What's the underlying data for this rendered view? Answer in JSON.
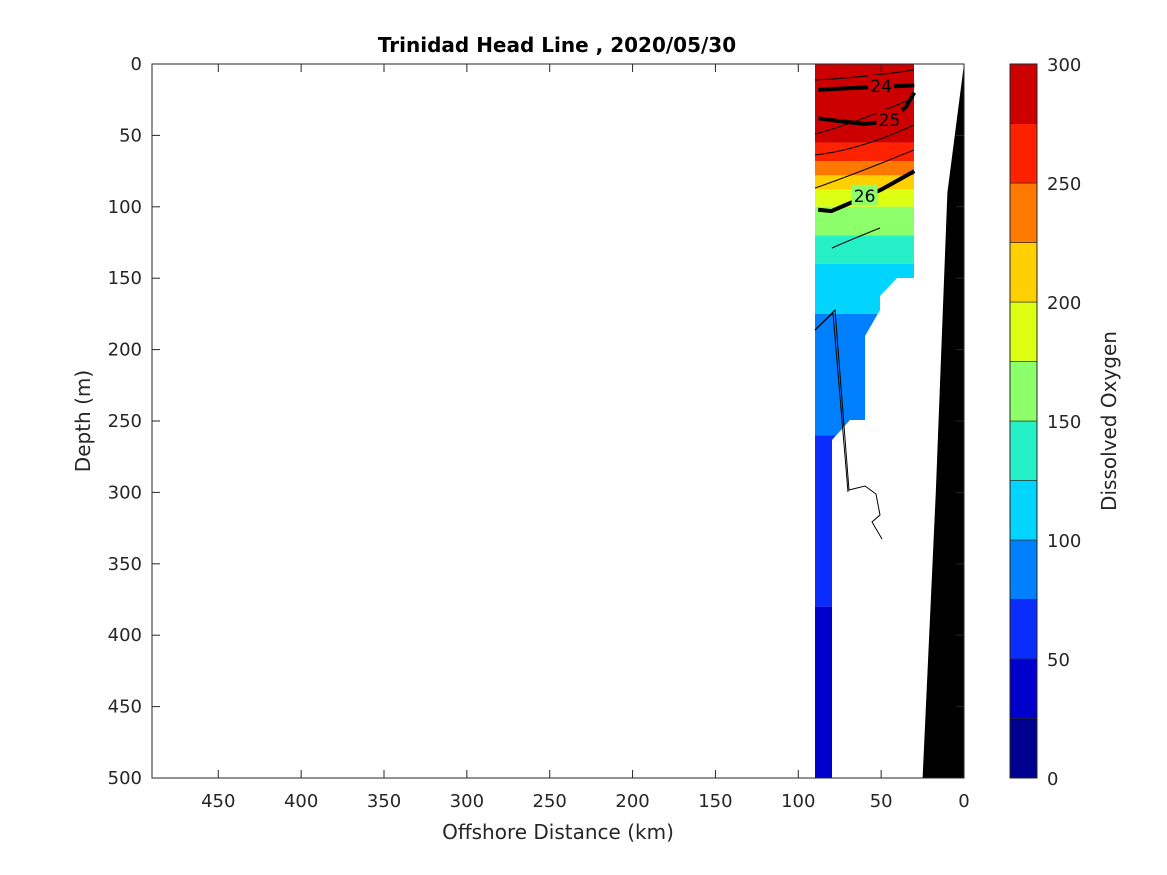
{
  "chart_data": {
    "type": "contour",
    "title": "Trinidad Head Line , 2020/05/30",
    "xlabel": "Offshore Distance (km)",
    "ylabel": "Depth (m)",
    "xlim": [
      490,
      0
    ],
    "ylim": [
      0,
      500
    ],
    "x_reversed": true,
    "y_reversed": true,
    "xticks": [
      450,
      400,
      350,
      300,
      250,
      200,
      150,
      100,
      50,
      0
    ],
    "yticks": [
      0,
      50,
      100,
      150,
      200,
      250,
      300,
      350,
      400,
      450,
      500
    ],
    "colorbar": {
      "label": "Dissolved Oxygen",
      "range": [
        0,
        300
      ],
      "ticks": [
        0,
        50,
        100,
        150,
        200,
        250,
        300
      ],
      "levels": [
        0,
        25,
        50,
        75,
        100,
        125,
        150,
        175,
        200,
        225,
        250,
        275,
        300
      ],
      "colors": [
        "#00008f",
        "#0000cc",
        "#0a2cff",
        "#0080ff",
        "#00d4ff",
        "#26f0c8",
        "#8cff6a",
        "#dcff14",
        "#ffd000",
        "#ff7800",
        "#ff2200",
        "#cc0000"
      ]
    },
    "oxygen_bands": [
      {
        "top": 0,
        "bottom": 55,
        "value": 287
      },
      {
        "top": 55,
        "bottom": 68,
        "value": 262
      },
      {
        "top": 68,
        "bottom": 78,
        "value": 238
      },
      {
        "top": 78,
        "bottom": 88,
        "value": 212
      },
      {
        "top": 88,
        "bottom": 100,
        "value": 188
      },
      {
        "top": 100,
        "bottom": 120,
        "value": 162
      },
      {
        "top": 120,
        "bottom": 140,
        "value": 137
      },
      {
        "top": 140,
        "bottom": 175,
        "value": 112
      },
      {
        "top": 175,
        "bottom": 260,
        "value": 87
      },
      {
        "top": 260,
        "bottom": 380,
        "value": 62
      },
      {
        "top": 380,
        "bottom": 500,
        "value": 37
      }
    ],
    "density_contours": [
      {
        "label": "24",
        "points": [
          [
            88,
            18
          ],
          [
            70,
            17
          ],
          [
            50,
            16
          ],
          [
            30,
            15
          ]
        ]
      },
      {
        "label": "25",
        "points": [
          [
            88,
            38
          ],
          [
            75,
            40
          ],
          [
            60,
            42
          ],
          [
            45,
            40
          ],
          [
            35,
            30
          ],
          [
            30,
            20
          ]
        ]
      },
      {
        "label": "26",
        "points": [
          [
            88,
            102
          ],
          [
            80,
            103
          ],
          [
            72,
            99
          ],
          [
            60,
            93
          ],
          [
            50,
            88
          ],
          [
            30,
            75
          ]
        ]
      }
    ],
    "bathymetry": [
      [
        0,
        0
      ],
      [
        10,
        90
      ],
      [
        17,
        300
      ],
      [
        25,
        500
      ]
    ]
  }
}
